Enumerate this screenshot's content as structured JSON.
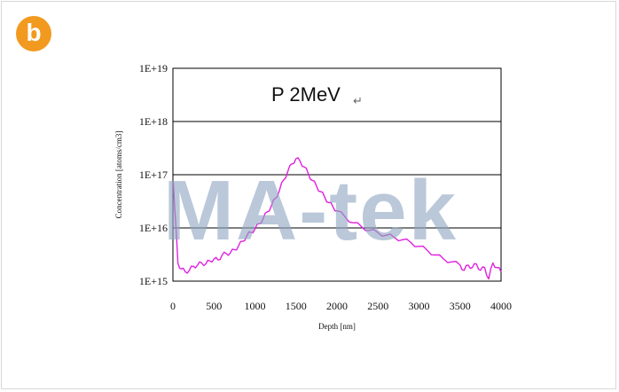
{
  "badge": {
    "label": "b"
  },
  "watermark": {
    "text": "MA-tek",
    "color": "#8fa6c1"
  },
  "chart_data": {
    "type": "line",
    "title": "P 2MeV",
    "title_mark": "↵",
    "xlabel": "Depth [nm]",
    "ylabel": "Concentration [atoms/cm3]",
    "xlim": [
      0,
      4000
    ],
    "ylim": [
      1000000000000000.0,
      1e+19
    ],
    "yscale": "log",
    "x_ticks": [
      "0",
      "500",
      "1000",
      "1500",
      "2000",
      "2500",
      "3000",
      "3500",
      "4000"
    ],
    "y_ticks": [
      "1E+15",
      "1E+16",
      "1E+17",
      "1E+18",
      "1E+19"
    ],
    "grid": "horizontal",
    "line_color": "#e020e0",
    "series": [
      {
        "x": [
          5,
          30,
          60,
          100,
          150,
          200,
          250,
          300,
          350,
          400,
          450,
          500,
          550,
          600,
          650,
          700,
          750,
          800,
          850,
          900,
          950,
          1000,
          1050,
          1100,
          1150,
          1200,
          1250,
          1300,
          1350,
          1400,
          1450,
          1500,
          1550,
          1600,
          1650,
          1700,
          1750,
          1800,
          1850,
          1900,
          1950,
          2000,
          2100,
          2200,
          2300,
          2400,
          2500,
          2600,
          2700,
          2800,
          2900,
          3000,
          3100,
          3200,
          3300,
          3400,
          3500,
          3550,
          3600,
          3650,
          3700,
          3750,
          3800,
          3850,
          3900,
          3950,
          4000
        ],
        "y": [
          7e+16,
          1.5e+16,
          2200000000000000.0,
          1700000000000000.0,
          1500000000000000.0,
          1600000000000000.0,
          1900000000000000.0,
          2000000000000000.0,
          2200000000000000.0,
          2100000000000000.0,
          2400000000000000.0,
          2600000000000000.0,
          2500000000000000.0,
          3100000000000000.0,
          3300000000000000.0,
          3400000000000000.0,
          3900000000000000.0,
          4600000000000000.0,
          5600000000000000.0,
          7100000000000000.0,
          8300000000000000.0,
          9500000000000000.0,
          1.2e+16,
          1.5e+16,
          2e+16,
          2.6e+16,
          3.6e+16,
          5.2e+16,
          8e+16,
          1.15e+17,
          1.6e+17,
          2e+17,
          1.8e+17,
          1.4e+17,
          1.05e+17,
          7.8e+16,
          6.1e+16,
          4.8e+16,
          3.8e+16,
          3e+16,
          2.5e+16,
          2.1e+16,
          1.6e+16,
          1.25e+16,
          1.05e+16,
          9000000000000000.0,
          8100000000000000.0,
          7300000000000000.0,
          6600000000000000.0,
          6000000000000000.0,
          5300000000000000.0,
          4500000000000000.0,
          3800000000000000.0,
          3100000000000000.0,
          2600000000000000.0,
          2300000000000000.0,
          2000000000000000.0,
          1600000000000000.0,
          2000000000000000.0,
          1800000000000000.0,
          2100000000000000.0,
          1600000000000000.0,
          1800000000000000.0,
          1100000000000000.0,
          2200000000000000.0,
          1800000000000000.0,
          1500000000000000.0
        ]
      }
    ]
  }
}
